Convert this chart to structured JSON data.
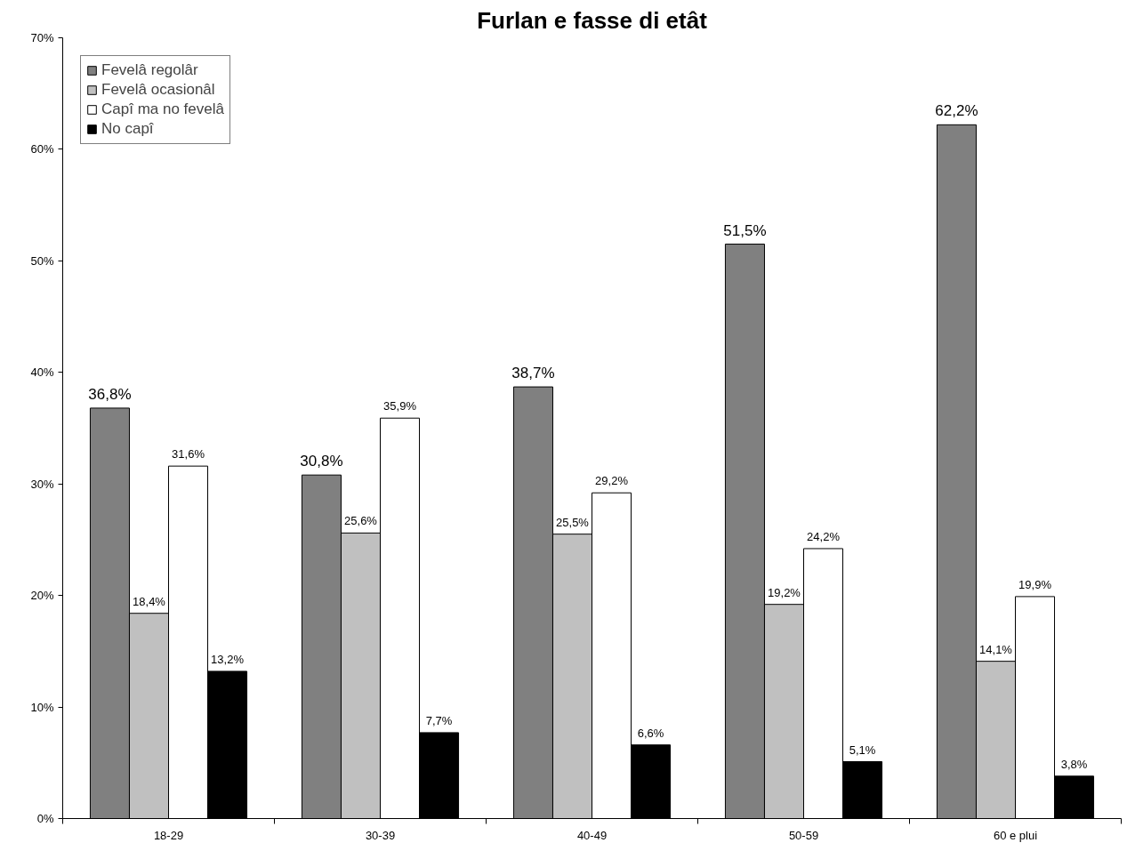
{
  "chart_data": {
    "type": "bar",
    "title": "Furlan e fasse di etât",
    "categories": [
      "18-29",
      "30-39",
      "40-49",
      "50-59",
      "60 e plui"
    ],
    "series": [
      {
        "name": "Fevelâ regolâr",
        "color": "#808080",
        "values": [
          36.8,
          30.8,
          38.7,
          51.5,
          62.2
        ],
        "value_labels": [
          "36,8%",
          "30,8%",
          "38,7%",
          "51,5%",
          "62,2%"
        ]
      },
      {
        "name": "Fevelâ ocasionâl",
        "color": "#c0c0c0",
        "values": [
          18.4,
          25.6,
          25.5,
          19.2,
          14.1
        ],
        "value_labels": [
          "18,4%",
          "25,6%",
          "25,5%",
          "19,2%",
          "14,1%"
        ]
      },
      {
        "name": "Capî ma no fevelâ",
        "color": "#ffffff",
        "values": [
          31.6,
          35.9,
          29.2,
          24.2,
          19.9
        ],
        "value_labels": [
          "31,6%",
          "35,9%",
          "29,2%",
          "24,2%",
          "19,9%"
        ]
      },
      {
        "name": "No capî",
        "color": "#000000",
        "values": [
          13.2,
          7.7,
          6.6,
          5.1,
          3.8
        ],
        "value_labels": [
          "13,2%",
          "7,7%",
          "6,6%",
          "5,1%",
          "3,8%"
        ]
      }
    ],
    "ylim": [
      0,
      70
    ],
    "yticks": [
      {
        "value": 0,
        "label": "0%"
      },
      {
        "value": 10,
        "label": "10%"
      },
      {
        "value": 20,
        "label": "20%"
      },
      {
        "value": 30,
        "label": "30%"
      },
      {
        "value": 40,
        "label": "40%"
      },
      {
        "value": 50,
        "label": "50%"
      },
      {
        "value": 60,
        "label": "60%"
      },
      {
        "value": 70,
        "label": "70%"
      }
    ],
    "grid": false,
    "legend": "top left"
  }
}
